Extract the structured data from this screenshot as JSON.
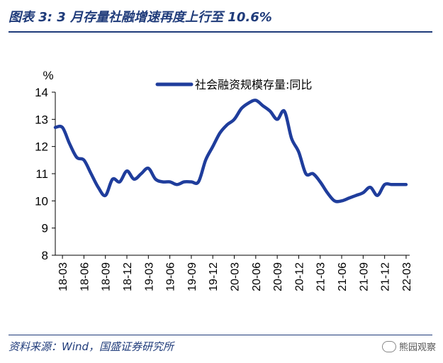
{
  "header": {
    "title": "图表 3:  3 月存量社融增速再度上行至 10.6%"
  },
  "footer": {
    "source": "资料来源：Wind，国盛证券研究所",
    "watermark": "熊园观察"
  },
  "colors": {
    "accent": "#1f3b7a",
    "series": "#1f3d9c",
    "axis": "#000000"
  },
  "chart_data": {
    "type": "line",
    "title": "",
    "ylabel": "%",
    "xlabel": "",
    "ylim": [
      8,
      14
    ],
    "yticks": [
      8,
      9,
      10,
      11,
      12,
      13,
      14
    ],
    "x_tick_labels": [
      "18-03",
      "18-06",
      "18-09",
      "18-12",
      "19-03",
      "19-06",
      "19-09",
      "19-12",
      "20-03",
      "20-06",
      "20-09",
      "20-12",
      "21-03",
      "21-06",
      "21-09",
      "21-12",
      "22-03"
    ],
    "legend": "top-center",
    "series": [
      {
        "name": "社会融资规模存量:同比",
        "x": [
          "2018-02",
          "2018-03",
          "2018-04",
          "2018-05",
          "2018-06",
          "2018-07",
          "2018-08",
          "2018-09",
          "2018-10",
          "2018-11",
          "2018-12",
          "2019-01",
          "2019-02",
          "2019-03",
          "2019-04",
          "2019-05",
          "2019-06",
          "2019-07",
          "2019-08",
          "2019-09",
          "2019-10",
          "2019-11",
          "2019-12",
          "2020-01",
          "2020-02",
          "2020-03",
          "2020-04",
          "2020-05",
          "2020-06",
          "2020-07",
          "2020-08",
          "2020-09",
          "2020-10",
          "2020-11",
          "2020-12",
          "2021-01",
          "2021-02",
          "2021-03",
          "2021-04",
          "2021-05",
          "2021-06",
          "2021-07",
          "2021-08",
          "2021-09",
          "2021-10",
          "2021-11",
          "2021-12",
          "2022-01",
          "2022-02",
          "2022-03"
        ],
        "values": [
          12.7,
          12.7,
          12.1,
          11.6,
          11.5,
          11.0,
          10.5,
          10.2,
          10.8,
          10.7,
          11.1,
          10.8,
          11.0,
          11.2,
          10.8,
          10.7,
          10.7,
          10.6,
          10.7,
          10.7,
          10.7,
          11.5,
          12.0,
          12.5,
          12.8,
          13.0,
          13.4,
          13.6,
          13.7,
          13.5,
          13.3,
          13.0,
          13.3,
          12.3,
          11.8,
          11.0,
          11.0,
          10.7,
          10.3,
          10.0,
          10.0,
          10.1,
          10.2,
          10.3,
          10.5,
          10.2,
          10.6,
          10.6,
          10.6,
          10.6
        ]
      }
    ]
  }
}
